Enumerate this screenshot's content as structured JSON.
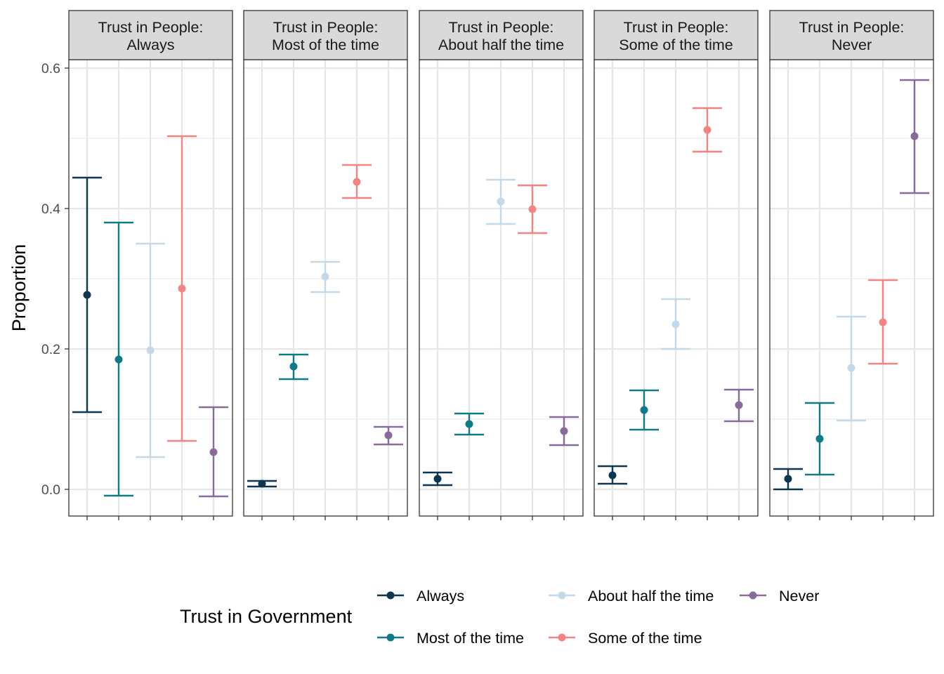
{
  "chart_data": {
    "type": "errorbar",
    "ylabel": "Proportion",
    "ylim": [
      -0.038,
      0.612
    ],
    "yticks": [
      0.0,
      0.2,
      0.4,
      0.6
    ],
    "ytick_labels": [
      "0.0",
      "0.2",
      "0.4",
      "0.6"
    ],
    "grid": true,
    "legend": {
      "title": "Trust in Government",
      "position": "bottom",
      "entries": [
        {
          "label": "Always",
          "color": "#0d3652"
        },
        {
          "label": "Most of the time",
          "color": "#0e7b87"
        },
        {
          "label": "About half the time",
          "color": "#c2d9ea"
        },
        {
          "label": "Some of the time",
          "color": "#f48481"
        },
        {
          "label": "Never",
          "color": "#8a6a9a"
        }
      ]
    },
    "categories": [
      "Always",
      "Most of the time",
      "About half the time",
      "Some of the time",
      "Never"
    ],
    "panels": [
      {
        "title_line1": "Trust in People:",
        "title_line2": "Always",
        "estimates": [
          0.277,
          0.185,
          0.198,
          0.286,
          0.053
        ],
        "lower": [
          0.11,
          -0.009,
          0.046,
          0.069,
          -0.01
        ],
        "upper": [
          0.444,
          0.38,
          0.35,
          0.503,
          0.117
        ]
      },
      {
        "title_line1": "Trust in People:",
        "title_line2": "Most of the time",
        "estimates": [
          0.008,
          0.175,
          0.303,
          0.438,
          0.077
        ],
        "lower": [
          0.004,
          0.157,
          0.281,
          0.415,
          0.064
        ],
        "upper": [
          0.012,
          0.192,
          0.324,
          0.462,
          0.089
        ]
      },
      {
        "title_line1": "Trust in People:",
        "title_line2": "About half the time",
        "estimates": [
          0.015,
          0.093,
          0.41,
          0.399,
          0.083
        ],
        "lower": [
          0.006,
          0.078,
          0.378,
          0.365,
          0.063
        ],
        "upper": [
          0.024,
          0.108,
          0.441,
          0.433,
          0.103
        ]
      },
      {
        "title_line1": "Trust in People:",
        "title_line2": "Some of the time",
        "estimates": [
          0.02,
          0.113,
          0.235,
          0.512,
          0.12
        ],
        "lower": [
          0.008,
          0.085,
          0.2,
          0.481,
          0.097
        ],
        "upper": [
          0.033,
          0.141,
          0.271,
          0.543,
          0.142
        ]
      },
      {
        "title_line1": "Trust in People:",
        "title_line2": "Never",
        "estimates": [
          0.015,
          0.072,
          0.173,
          0.238,
          0.503
        ],
        "lower": [
          0.0,
          0.021,
          0.098,
          0.179,
          0.422
        ],
        "upper": [
          0.029,
          0.123,
          0.246,
          0.298,
          0.583
        ]
      }
    ]
  }
}
